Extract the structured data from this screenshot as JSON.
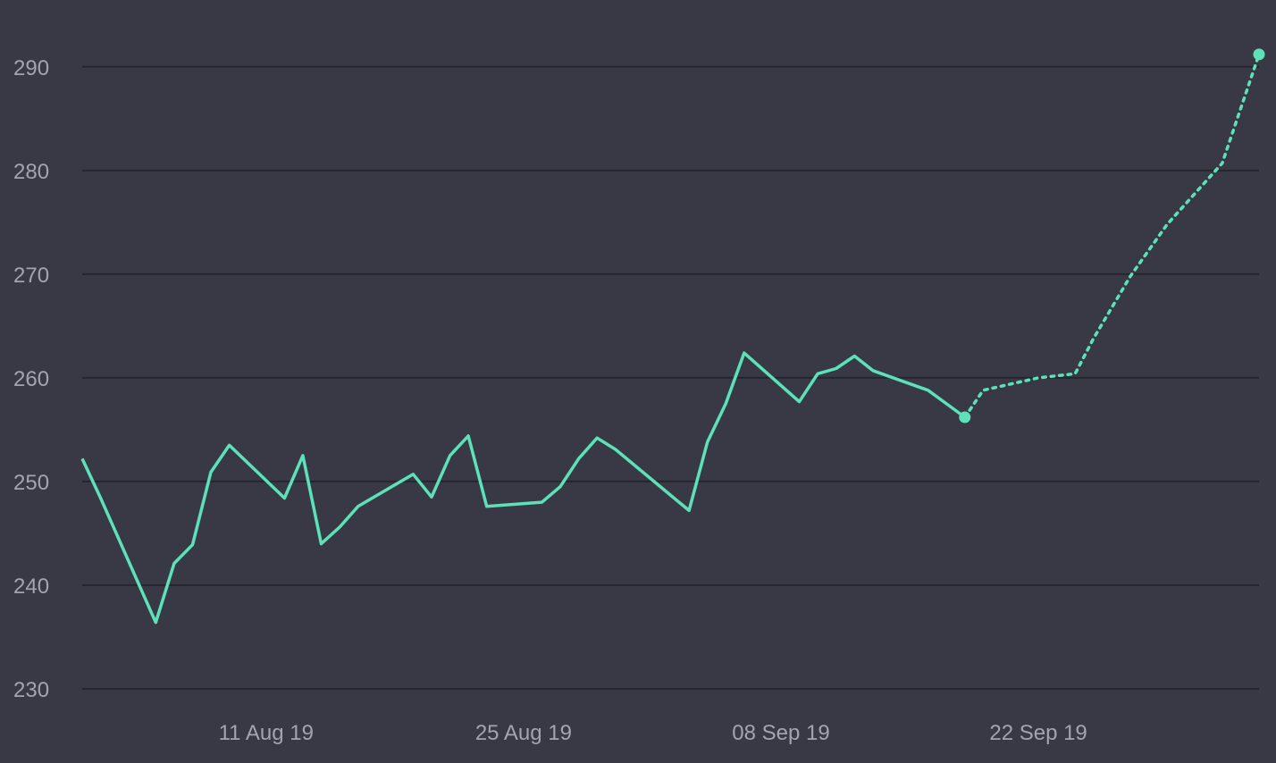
{
  "chart_data": {
    "type": "line",
    "title": "",
    "xlabel": "",
    "ylabel": "",
    "ylim": [
      230,
      293
    ],
    "xlim": [
      "2019-08-01",
      "2019-10-04"
    ],
    "grid": true,
    "yticks": [
      230,
      240,
      250,
      260,
      270,
      280,
      290
    ],
    "xticks": [
      "11 Aug 19",
      "25 Aug 19",
      "08 Sep 19",
      "22 Sep 19"
    ],
    "xtick_dates": [
      "2019-08-11",
      "2019-08-25",
      "2019-09-08",
      "2019-09-22"
    ],
    "colors": {
      "background": "#393945",
      "grid": "#26262e",
      "line": "#5ce1b9",
      "tick_text": "#a4a4b0"
    },
    "series": [
      {
        "style": "solid",
        "x": [
          "2019-08-01",
          "2019-08-02",
          "2019-08-05",
          "2019-08-06",
          "2019-08-07",
          "2019-08-08",
          "2019-08-09",
          "2019-08-12",
          "2019-08-13",
          "2019-08-14",
          "2019-08-15",
          "2019-08-16",
          "2019-08-19",
          "2019-08-20",
          "2019-08-21",
          "2019-08-22",
          "2019-08-23",
          "2019-08-26",
          "2019-08-27",
          "2019-08-28",
          "2019-08-29",
          "2019-08-30",
          "2019-09-03",
          "2019-09-04",
          "2019-09-05",
          "2019-09-06",
          "2019-09-09",
          "2019-09-10",
          "2019-09-11",
          "2019-09-12",
          "2019-09-13",
          "2019-09-16",
          "2019-09-17",
          "2019-09-18"
        ],
        "y": [
          252.2,
          248.4,
          236.4,
          242.1,
          243.9,
          250.9,
          253.5,
          248.4,
          252.5,
          244.0,
          245.6,
          247.6,
          250.7,
          248.5,
          252.5,
          254.4,
          247.6,
          248.0,
          249.5,
          252.2,
          254.2,
          253.1,
          247.2,
          253.8,
          257.5,
          262.4,
          257.7,
          260.4,
          260.9,
          262.1,
          260.7,
          258.8,
          257.5,
          256.2
        ],
        "marker_last": true
      },
      {
        "style": "dotted",
        "x": [
          "2019-09-18",
          "2019-09-19",
          "2019-09-21",
          "2019-09-22",
          "2019-09-24",
          "2019-09-25",
          "2019-09-27",
          "2019-09-29",
          "2019-10-02",
          "2019-10-04"
        ],
        "y": [
          256.2,
          258.8,
          259.6,
          260.0,
          260.4,
          263.8,
          269.8,
          274.8,
          280.7,
          291.2
        ],
        "marker_last": true
      }
    ]
  }
}
